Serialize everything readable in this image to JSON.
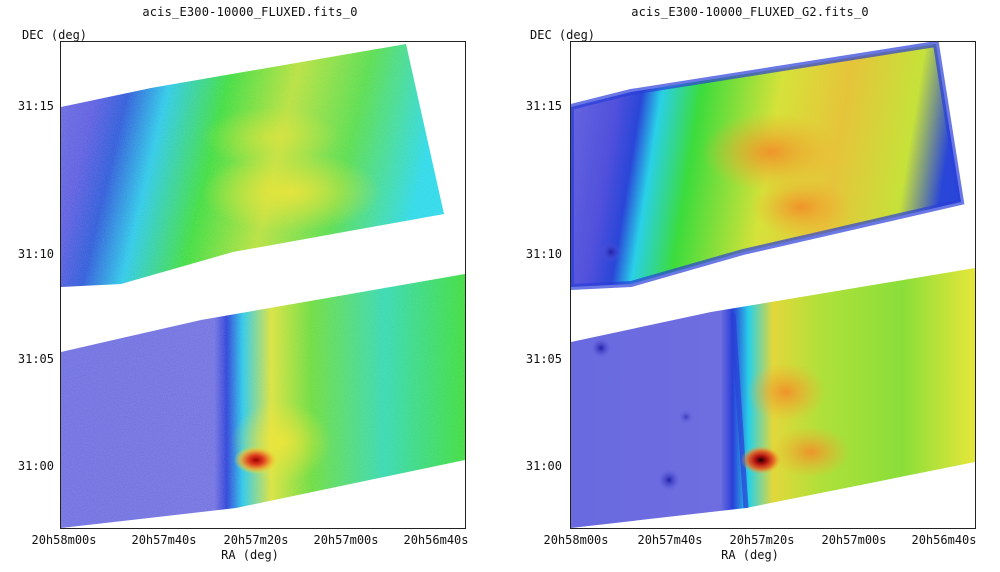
{
  "panels": [
    {
      "title": "acis_E300-10000_FLUXED.fits_0",
      "y_axis_label": "DEC (deg)",
      "x_axis_label": "RA (deg)",
      "y_ticks": [
        "31:15",
        "31:10",
        "31:05",
        "31:00"
      ],
      "x_ticks": [
        "20h58m00s",
        "20h57m40s",
        "20h57m20s",
        "20h57m00s",
        "20h56m40s"
      ],
      "smoothing": "raw"
    },
    {
      "title": "acis_E300-10000_FLUXED_G2.fits_0",
      "y_axis_label": "DEC (deg)",
      "x_axis_label": "RA (deg)",
      "y_ticks": [
        "31:15",
        "31:10",
        "31:05",
        "31:00"
      ],
      "x_ticks": [
        "20h58m00s",
        "20h57m40s",
        "20h57m20s",
        "20h57m00s",
        "20h56m40s"
      ],
      "smoothing": "gaussian"
    }
  ],
  "colormap": {
    "background": "#6b6be0",
    "edge": "#2a3fd8",
    "cyan": "#29d8e8",
    "green": "#3cdc3c",
    "yellow": "#e6e63a",
    "orange": "#f0a030",
    "hot": "#c01010"
  }
}
